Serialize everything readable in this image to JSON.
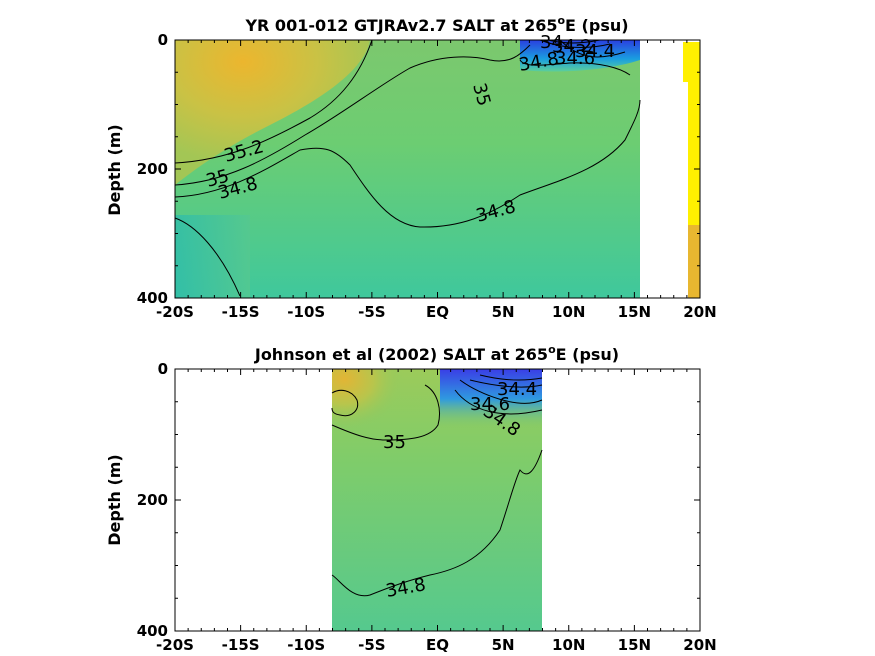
{
  "chart_data": [
    {
      "type": "heatmap",
      "title": "YR 001-012 GTJRAv2.7 SALT at 265",
      "title_sup": "o",
      "title_tail": "E (psu)",
      "ylabel": "Depth (m)",
      "x_ticks": [
        "-20S",
        "-15S",
        "-10S",
        "-5S",
        "EQ",
        "5N",
        "10N",
        "15N",
        "20N"
      ],
      "x_tick_values": [
        -20,
        -15,
        -10,
        -5,
        0,
        5,
        10,
        15,
        20
      ],
      "y_ticks": [
        "0",
        "200",
        "400"
      ],
      "y_tick_values": [
        0,
        200,
        400
      ],
      "xlim": [
        -20,
        20
      ],
      "ylim": [
        0,
        400
      ],
      "data_extent_lat": [
        -20,
        15.5
      ],
      "contour_labels": [
        {
          "text": "35.2",
          "lat": -14,
          "depth": 175
        },
        {
          "text": "35",
          "lat": -16.5,
          "depth": 210
        },
        {
          "text": "34.8",
          "lat": -15,
          "depth": 225
        },
        {
          "text": "35",
          "lat": 3.5,
          "depth": 70
        },
        {
          "text": "34.8",
          "lat": 8.5,
          "depth": 35
        },
        {
          "text": "34.8",
          "lat": 4.5,
          "depth": 262
        },
        {
          "text": "34.6",
          "lat": 10,
          "depth": 20
        },
        {
          "text": "34.4",
          "lat": 11,
          "depth": 12
        },
        {
          "text": "34.2",
          "lat": 10,
          "depth": 5
        },
        {
          "text": "34",
          "lat": 9,
          "depth": 3
        }
      ],
      "colorbar_colors": [
        "#fff000",
        "#e8b730"
      ]
    },
    {
      "type": "heatmap",
      "title": "Johnson et al (2002) SALT at 265",
      "title_sup": "o",
      "title_tail": "E (psu)",
      "ylabel": "Depth (m)",
      "x_ticks": [
        "-20S",
        "-15S",
        "-10S",
        "-5S",
        "EQ",
        "5N",
        "10N",
        "15N",
        "20N"
      ],
      "x_tick_values": [
        -20,
        -15,
        -10,
        -5,
        0,
        5,
        10,
        15,
        20
      ],
      "y_ticks": [
        "0",
        "200",
        "400"
      ],
      "y_tick_values": [
        0,
        200,
        400
      ],
      "xlim": [
        -20,
        20
      ],
      "ylim": [
        0,
        400
      ],
      "data_extent_lat": [
        -8,
        8
      ],
      "contour_labels": [
        {
          "text": "35",
          "lat": -3,
          "depth": 110
        },
        {
          "text": "34.8",
          "lat": -2,
          "depth": 335
        },
        {
          "text": "34.6",
          "lat": 4.2,
          "depth": 55
        },
        {
          "text": "34.8",
          "lat": 5.3,
          "depth": 85
        },
        {
          "text": "34.4",
          "lat": 5.5,
          "depth": 35
        }
      ]
    }
  ]
}
